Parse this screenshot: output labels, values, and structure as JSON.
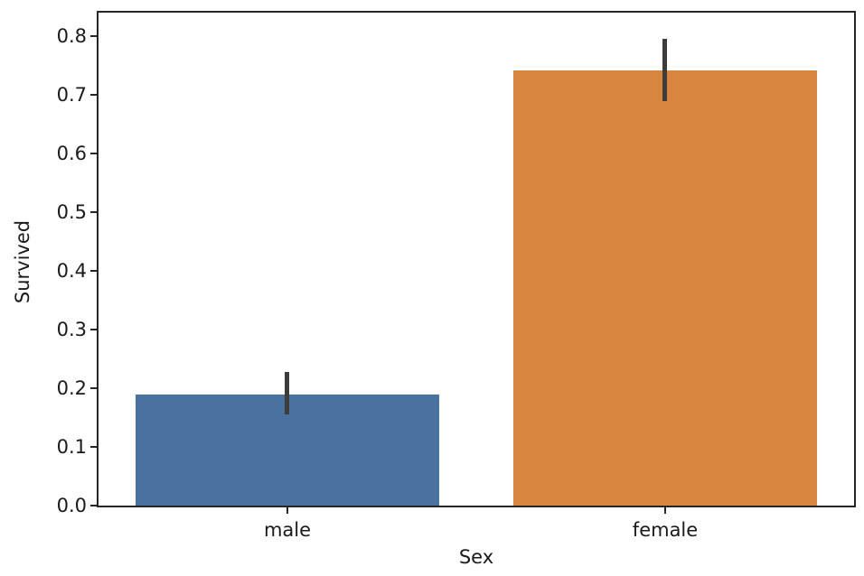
{
  "chart_data": {
    "type": "bar",
    "title": "",
    "xlabel": "Sex",
    "ylabel": "Survived",
    "categories": [
      "male",
      "female"
    ],
    "values": [
      0.19,
      0.742
    ],
    "error_bars": [
      [
        0.155,
        0.228
      ],
      [
        0.69,
        0.795
      ]
    ],
    "bar_colors": [
      "#4a72a0",
      "#d8853e"
    ],
    "error_bar_color": "#3c3c3c",
    "yticks": [
      "0.0",
      "0.1",
      "0.2",
      "0.3",
      "0.4",
      "0.5",
      "0.6",
      "0.7",
      "0.8"
    ],
    "ylim": [
      0,
      0.84
    ],
    "grid": "off",
    "legend": "none",
    "background_color": "#ffffff",
    "spine_color": "#262626",
    "text_color": "#1a1a1a"
  }
}
